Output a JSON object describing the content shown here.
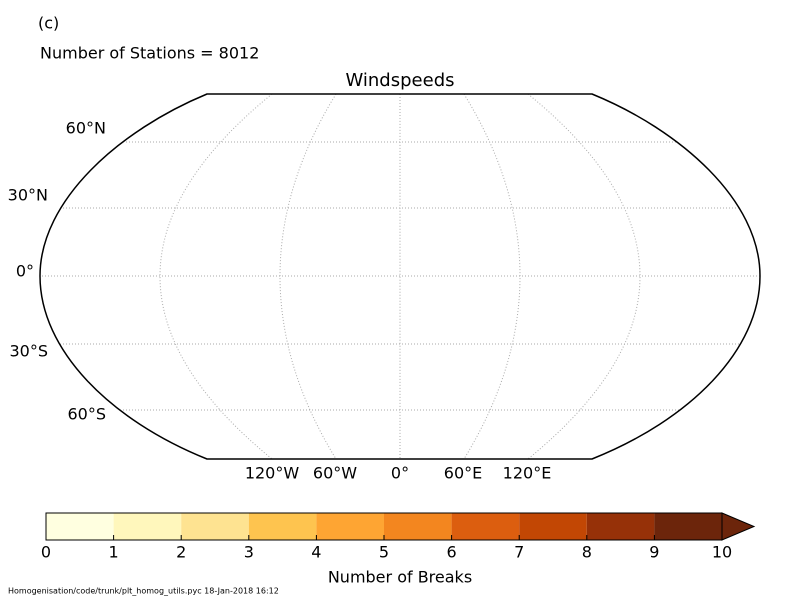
{
  "panel_label": "(c)",
  "subtitle": "Number of Stations = 8012",
  "title": "Windspeeds",
  "map": {
    "lat_labels": [
      "60°N",
      "30°N",
      "0°",
      "30°S",
      "60°S"
    ],
    "lon_labels": [
      "120°W",
      "60°W",
      "0°",
      "60°E",
      "120°E"
    ]
  },
  "colorbar": {
    "ticks": [
      0,
      1,
      2,
      3,
      4,
      5,
      6,
      7,
      8,
      9,
      10
    ],
    "colors": [
      "#ffffe0",
      "#fff7bc",
      "#fee391",
      "#fec44f",
      "#fea533",
      "#f3861f",
      "#dc5e0f",
      "#c24704",
      "#963108",
      "#6c250b"
    ],
    "label": "Number of Breaks"
  },
  "footer": "Homogenisation/code/trunk/plt_homog_utils.pyc   18-Jan-2018 16:12"
}
